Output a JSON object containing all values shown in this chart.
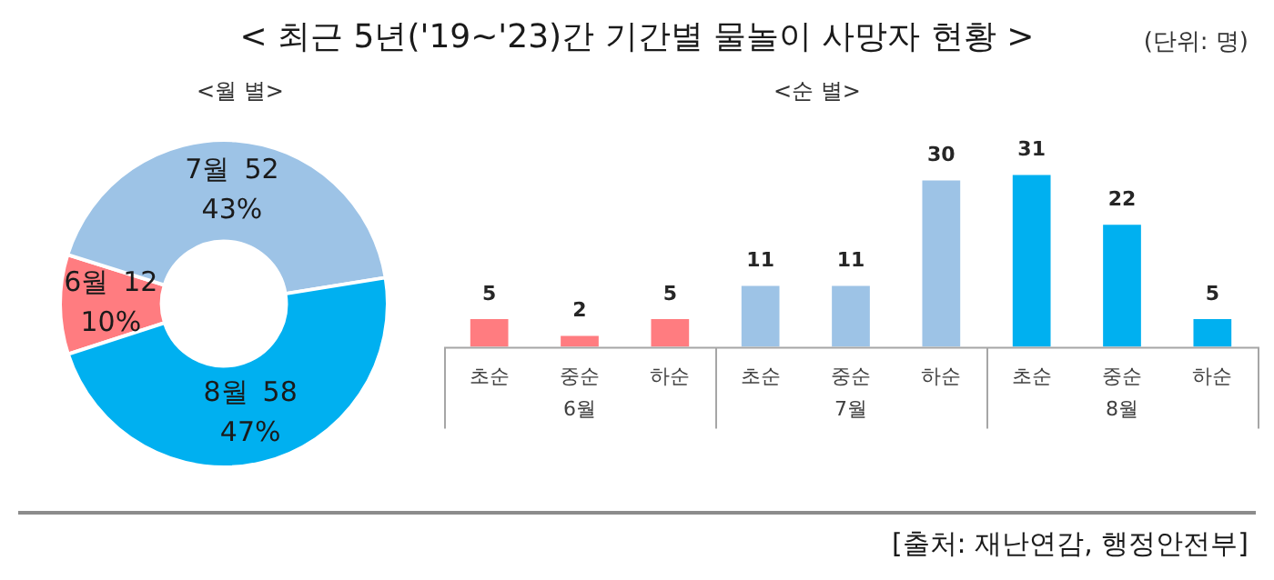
{
  "chart_data": [
    {
      "type": "donut",
      "title": "< 최근 5년('19~'23)간 기간별 물놀이 사망자 현황 >",
      "subtitle": "<월 별>",
      "annotations": [
        "(단위: 명)",
        {
          "text": "10%",
          "x": "6월"
        },
        {
          "text": "43%",
          "x": "7월"
        },
        {
          "text": "47%",
          "x": "8월"
        }
      ],
      "categories": [
        "6월",
        "7월",
        "8월"
      ],
      "values": [
        12,
        52,
        58
      ],
      "colors": [
        "#ff7c80",
        "#9dc3e6",
        "#00b0f0"
      ],
      "data_labels": true,
      "legend": false
    },
    {
      "type": "bar",
      "title": "<순 별>",
      "annotations": [
        "[출처: 재난연감, 행정안전부]"
      ],
      "categories": [
        "초순",
        "중순",
        "하순",
        "초순",
        "중순",
        "하순",
        "초순",
        "중순",
        "하순"
      ],
      "series": [
        {
          "name": "6월",
          "color": "#ff7c80",
          "values": [
            5,
            2,
            5,
            null,
            null,
            null,
            null,
            null,
            null
          ]
        },
        {
          "name": "7월",
          "color": "#9dc3e6",
          "values": [
            null,
            null,
            null,
            11,
            11,
            30,
            null,
            null,
            null
          ]
        },
        {
          "name": "8월",
          "color": "#00b0f0",
          "values": [
            null,
            null,
            null,
            null,
            null,
            null,
            31,
            22,
            5
          ]
        }
      ],
      "data_labels": true,
      "grid": false,
      "legend": false
    }
  ]
}
